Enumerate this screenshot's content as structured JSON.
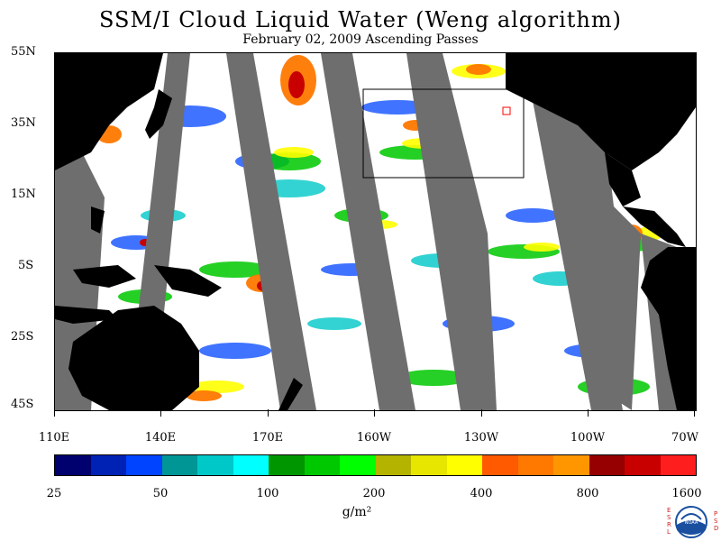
{
  "title": "SSM/I Cloud Liquid Water (Weng algorithm)",
  "subtitle": "February 02, 2009  Ascending Passes",
  "latitude_labels": [
    "55N",
    "35N",
    "15N",
    "5S",
    "25S",
    "45S"
  ],
  "longitude_labels": [
    "110E",
    "140E",
    "170E",
    "160W",
    "130W",
    "100W",
    "70W"
  ],
  "colorbar": {
    "colors": [
      "#00006e",
      "#0022b4",
      "#0044ff",
      "#009696",
      "#00c8c8",
      "#00ffff",
      "#009600",
      "#00c800",
      "#00ff00",
      "#b4b400",
      "#e6e600",
      "#ffff00",
      "#ff5a00",
      "#ff7800",
      "#ff9600",
      "#960000",
      "#c80000",
      "#ff1e1e"
    ],
    "tick_labels": [
      "25",
      "50",
      "100",
      "200",
      "400",
      "800",
      "1600"
    ]
  },
  "units": "g/m²",
  "logo": {
    "left_text": [
      "E",
      "S",
      "R",
      "L"
    ],
    "right_text": [
      "P",
      "S",
      "D"
    ],
    "center_text": "NOAA"
  },
  "colors": {
    "land": "#000000",
    "no_data": "#6e6e6e",
    "ocean_clear": "#ffffff",
    "highlight_box": "#000000",
    "site_marker": "#ff0000"
  }
}
